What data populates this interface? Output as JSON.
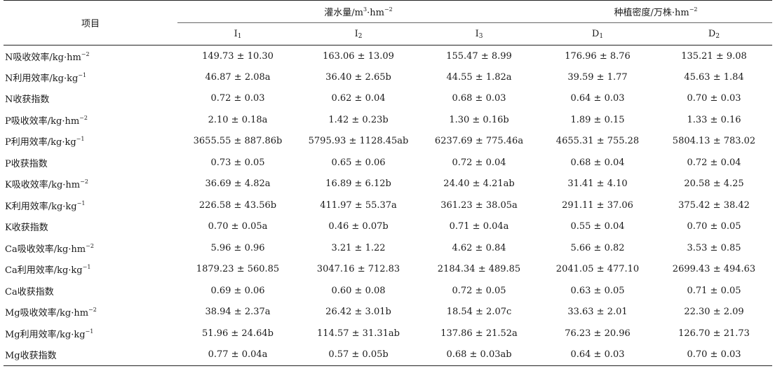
{
  "table": {
    "item_header": "项目",
    "groups": [
      {
        "label": "灌水量/m",
        "unit_sup1": "3",
        "unit_mid": "·hm",
        "unit_sup2": "−2"
      },
      {
        "label": "种植密度/万株·hm",
        "unit_sup1": "",
        "unit_mid": "",
        "unit_sup2": "−2"
      }
    ],
    "subheaders": [
      {
        "letter": "I",
        "sub": "1"
      },
      {
        "letter": "I",
        "sub": "2"
      },
      {
        "letter": "I",
        "sub": "3"
      },
      {
        "letter": "D",
        "sub": "1"
      },
      {
        "letter": "D",
        "sub": "2"
      }
    ],
    "rows": [
      {
        "name": "N吸收效率/kg·hm",
        "sup": "−2",
        "values": [
          "149.73 ± 10.30",
          "163.06 ± 13.09",
          "155.47 ± 8.99",
          "176.96 ± 8.76",
          "135.21 ± 9.08"
        ]
      },
      {
        "name": "N利用效率/kg·kg",
        "sup": "−1",
        "values": [
          "46.87 ± 2.08a",
          "36.40 ± 2.65b",
          "44.55 ± 1.82a",
          "39.59 ± 1.77",
          "45.63 ± 1.84"
        ]
      },
      {
        "name": "N收获指数",
        "sup": "",
        "values": [
          "0.72 ± 0.03",
          "0.62 ± 0.04",
          "0.68 ± 0.03",
          "0.64 ± 0.03",
          "0.70 ± 0.03"
        ]
      },
      {
        "name": "P吸收效率/kg·hm",
        "sup": "−2",
        "values": [
          "2.10 ± 0.18a",
          "1.42 ± 0.23b",
          "1.30 ± 0.16b",
          "1.89 ± 0.15",
          "1.33 ± 0.16"
        ]
      },
      {
        "name": "P利用效率/kg·kg",
        "sup": "−1",
        "values": [
          "3655.55 ± 887.86b",
          "5795.93 ± 1128.45ab",
          "6237.69 ± 775.46a",
          "4655.31 ± 755.28",
          "5804.13 ± 783.02"
        ]
      },
      {
        "name": "P收获指数",
        "sup": "",
        "values": [
          "0.73 ± 0.05",
          "0.65 ± 0.06",
          "0.72 ± 0.04",
          "0.68 ± 0.04",
          "0.72 ± 0.04"
        ]
      },
      {
        "name": "K吸收效率/kg·hm",
        "sup": "−2",
        "values": [
          "36.69 ± 4.82a",
          "16.89 ± 6.12b",
          "24.40 ± 4.21ab",
          "31.41 ± 4.10",
          "20.58 ± 4.25"
        ]
      },
      {
        "name": "K利用效率/kg·kg",
        "sup": "−1",
        "values": [
          "226.58 ± 43.56b",
          "411.97 ± 55.37a",
          "361.23 ± 38.05a",
          "291.11 ± 37.06",
          "375.42 ± 38.42"
        ]
      },
      {
        "name": "K收获指数",
        "sup": "",
        "values": [
          "0.70 ± 0.05a",
          "0.46 ± 0.07b",
          "0.71 ± 0.04a",
          "0.55 ± 0.04",
          "0.70 ± 0.05"
        ]
      },
      {
        "name": "Ca吸收效率/kg·hm",
        "sup": "−2",
        "values": [
          "5.96 ± 0.96",
          "3.21 ± 1.22",
          "4.62 ± 0.84",
          "5.66 ± 0.82",
          "3.53 ± 0.85"
        ]
      },
      {
        "name": "Ca利用效率/kg·kg",
        "sup": "−1",
        "values": [
          "1879.23 ± 560.85",
          "3047.16 ± 712.83",
          "2184.34 ± 489.85",
          "2041.05 ± 477.10",
          "2699.43 ± 494.63"
        ]
      },
      {
        "name": "Ca收获指数",
        "sup": "",
        "values": [
          "0.69 ± 0.06",
          "0.60 ± 0.08",
          "0.72 ± 0.05",
          "0.63 ± 0.05",
          "0.71 ± 0.05"
        ]
      },
      {
        "name": "Mg吸收效率/kg·hm",
        "sup": "−2",
        "values": [
          "38.94 ± 2.37a",
          "26.42 ± 3.01b",
          "18.54 ± 2.07c",
          "33.63 ± 2.01",
          "22.30 ± 2.09"
        ]
      },
      {
        "name": "Mg利用效率/kg·kg",
        "sup": "−1",
        "values": [
          "51.96 ± 24.64b",
          "114.57 ± 31.31ab",
          "137.86 ± 21.52a",
          "76.23 ± 20.96",
          "126.70 ± 21.73"
        ]
      },
      {
        "name": "Mg收获指数",
        "sup": "",
        "values": [
          "0.77 ± 0.04a",
          "0.57 ± 0.05b",
          "0.68 ± 0.03ab",
          "0.64 ± 0.03",
          "0.70 ± 0.03"
        ]
      }
    ]
  }
}
